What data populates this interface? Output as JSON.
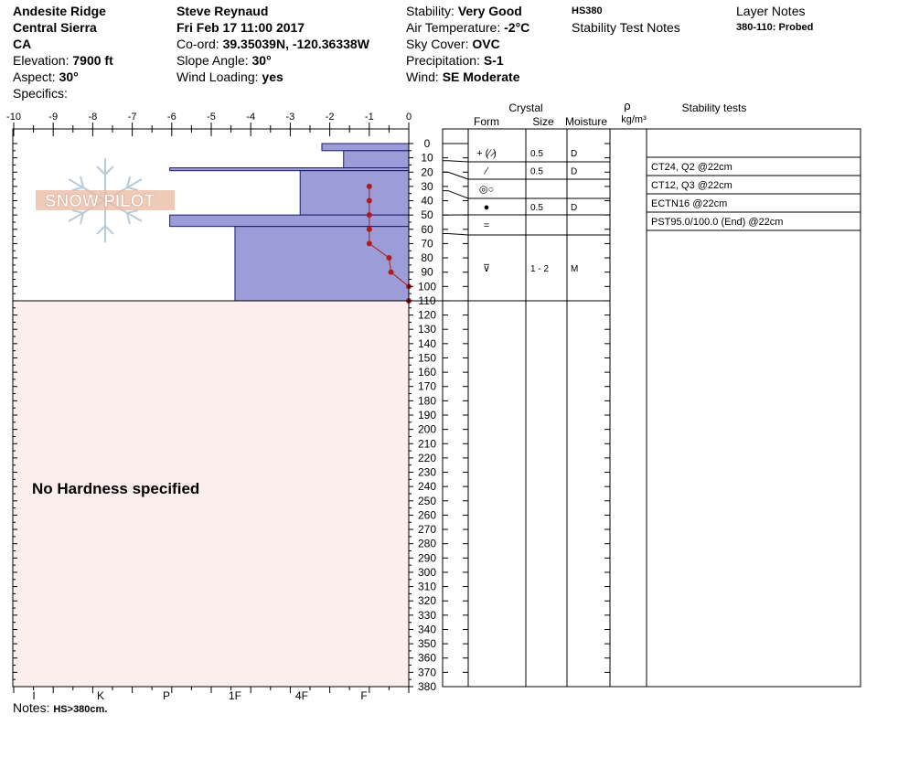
{
  "header": {
    "location_name": "Andesite Ridge",
    "range": "Central Sierra",
    "state": "CA",
    "elevation_label": "Elevation:",
    "elevation_value": "7900 ft",
    "aspect_label": "Aspect:",
    "aspect_value": "30°",
    "specifics_label": "Specifics:",
    "observer": "Steve Reynaud",
    "datetime": "Fri Feb 17 11:00 2017",
    "coord_label": "Co-ord:",
    "coord_value": "39.35039N, -120.36338W",
    "slope_label": "Slope Angle:",
    "slope_value": "30°",
    "wind_loading_label": "Wind Loading:",
    "wind_loading_value": "yes",
    "stability_label": "Stability:",
    "stability_value": "Very Good",
    "air_temp_label": "Air Temperature:",
    "air_temp_value": "-2°C",
    "sky_label": "Sky Cover:",
    "sky_value": "OVC",
    "precip_label": "Precipitation:",
    "precip_value": "S-1",
    "wind_label": "Wind:",
    "wind_value": "SE Moderate",
    "hs": "HS380",
    "stability_test_notes": "Stability Test Notes",
    "layer_notes_title": "Layer Notes",
    "layer_notes_value": "380-110: Probed"
  },
  "logo_text": "SNOW PILOT",
  "no_hardness": "No Hardness specified",
  "notes_label": "Notes:",
  "notes_value": "HS>380cm.",
  "columns": {
    "crystal": "Crystal",
    "form": "Form",
    "size": "Size",
    "moisture": "Moisture",
    "rho": "ρ",
    "density_unit": "kg/m³",
    "stability_tests": "Stability tests"
  },
  "chart_data": {
    "type": "bar",
    "subtype": "snow-profile",
    "temp_axis": {
      "ticks": [
        -10,
        -9,
        -8,
        -7,
        -6,
        -5,
        -4,
        -3,
        -2,
        -1,
        0
      ],
      "range": [
        -10,
        0
      ]
    },
    "depth_axis": {
      "range": [
        0,
        380
      ],
      "ticks": [
        0,
        10,
        20,
        30,
        40,
        50,
        60,
        70,
        80,
        90,
        100,
        110,
        120,
        130,
        140,
        150,
        160,
        170,
        180,
        190,
        200,
        210,
        220,
        230,
        240,
        250,
        260,
        270,
        280,
        290,
        300,
        310,
        320,
        330,
        340,
        350,
        360,
        370,
        380
      ]
    },
    "hardness_axis": {
      "labels": [
        "I",
        "K",
        "P",
        "1F",
        "4F",
        "F"
      ]
    },
    "hardness_layers": [
      {
        "top": 0,
        "bottom": 5,
        "temp_equiv": -2.2
      },
      {
        "top": 5,
        "bottom": 17,
        "temp_equiv": -1.65
      },
      {
        "top": 17,
        "bottom": 19,
        "temp_equiv": -6.05
      },
      {
        "top": 19,
        "bottom": 50,
        "temp_equiv": -2.75
      },
      {
        "top": 50,
        "bottom": 58,
        "temp_equiv": -6.05
      },
      {
        "top": 58,
        "bottom": 110,
        "temp_equiv": -4.4
      }
    ],
    "temperature_profile": [
      {
        "depth": 30,
        "temp": -1.0
      },
      {
        "depth": 40,
        "temp": -1.0
      },
      {
        "depth": 50,
        "temp": -1.0
      },
      {
        "depth": 60,
        "temp": -1.0
      },
      {
        "depth": 70,
        "temp": -1.0
      },
      {
        "depth": 80,
        "temp": -0.5
      },
      {
        "depth": 90,
        "temp": -0.45
      },
      {
        "depth": 100,
        "temp": 0.0
      },
      {
        "depth": 110,
        "temp": 0.0
      }
    ],
    "probed_from": 110,
    "layers": [
      {
        "top": 0,
        "bottom": 12,
        "form": "+ (⁄ ̷)",
        "size": "0.5",
        "moisture": "D"
      },
      {
        "top": 12,
        "bottom": 20,
        "form": "⁄",
        "size": "0.5",
        "moisture": "D"
      },
      {
        "top": 20,
        "bottom": 33,
        "form": "◎○",
        "size": "",
        "moisture": ""
      },
      {
        "top": 33,
        "bottom": 50,
        "form": "●",
        "size": "0.5",
        "moisture": "D"
      },
      {
        "top": 50,
        "bottom": 63,
        "form": "=",
        "size": "",
        "moisture": ""
      },
      {
        "top": 63,
        "bottom": 110,
        "form": "⊽",
        "size": "1 - 2",
        "moisture": "M"
      }
    ],
    "stability_tests": [
      "CT24, Q2 @22cm",
      "CT12, Q3 @22cm",
      "ECTN16 @22cm",
      "PST95.0/100.0 (End) @22cm"
    ]
  }
}
